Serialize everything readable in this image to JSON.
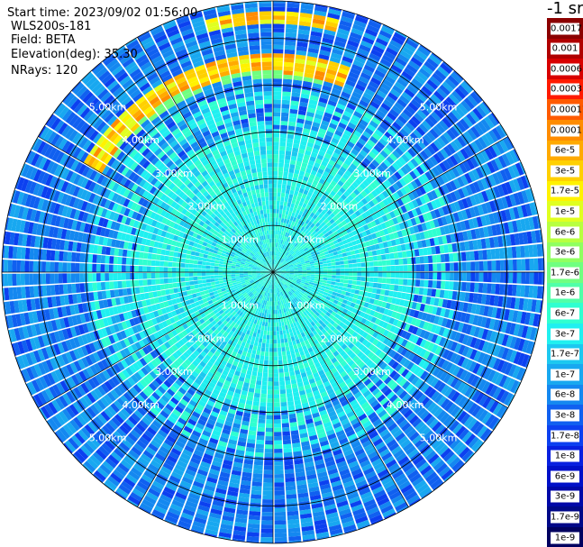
{
  "header": {
    "start_time": "Start time: 2023/09/02 01:56:00",
    "instrument": "WLS200s-181",
    "field": "Field: BETA",
    "elevation": "Elevation(deg): 35.30",
    "nrays": "NRays: 120"
  },
  "colorbar": {
    "unit": "-1 sr",
    "labels": [
      "0.0017",
      "0.001",
      "0.0006",
      "0.0003",
      "0.00017",
      "0.0001",
      "6e-5",
      "3e-5",
      "1.7e-5",
      "1e-5",
      "6e-6",
      "3e-6",
      "1.7e-6",
      "1e-6",
      "6e-7",
      "3e-7",
      "1.7e-7",
      "1e-7",
      "6e-8",
      "3e-8",
      "1.7e-8",
      "1e-8",
      "6e-9",
      "3e-9",
      "1.7e-9",
      "1e-9"
    ],
    "colors": [
      "#8b0000",
      "#b00000",
      "#d80000",
      "#ff1a00",
      "#ff5a00",
      "#ff8c00",
      "#ffaa00",
      "#ffd000",
      "#fff200",
      "#e0ff20",
      "#b8ff40",
      "#90ff60",
      "#70ff80",
      "#50ffa8",
      "#30ffd0",
      "#20f0f0",
      "#1cc8f0",
      "#18a8f0",
      "#1488f0",
      "#1060f0",
      "#0c40f0",
      "#0820e0",
      "#0010c8",
      "#0008a8",
      "#000888",
      "#000060"
    ]
  },
  "chart_data": {
    "type": "heatmap",
    "projection": "polar PPI",
    "nrays": 120,
    "range_rings_km": [
      1.0,
      2.0,
      3.0,
      4.0,
      5.0
    ],
    "range_labels": [
      "1.00km",
      "2.00km",
      "3.00km",
      "4.00km",
      "5.00km"
    ],
    "max_range_km": 5.8,
    "spokes_deg": [
      0,
      30,
      60,
      90,
      120,
      150,
      180,
      210,
      240,
      270,
      300,
      330
    ],
    "color_scale": "log",
    "value_range": [
      1e-09,
      0.0017
    ],
    "features": [
      {
        "region": "near range 0-3 km",
        "typical_value": "3e-7"
      },
      {
        "region": "outer range 4-5.8 km",
        "typical_value": "3e-8"
      },
      {
        "region": "arc ~4.3-4.6 km, azimuth 300-20 deg",
        "typical_value": "3e-5 to 1e-5"
      },
      {
        "region": "arc ~5.3-5.6 km, azimuth 345-15 deg",
        "typical_value": "3e-5"
      }
    ]
  }
}
